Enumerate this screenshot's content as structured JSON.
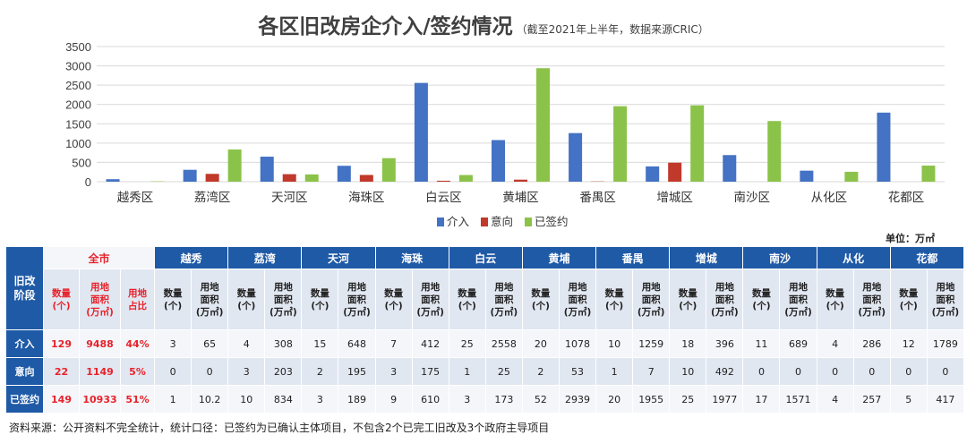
{
  "title": "各区旧改房企介入/签约情况",
  "subtitle": "（截至2021年上半年，数据来源CRIC）",
  "chart_data": {
    "type": "bar",
    "categories": [
      "越秀区",
      "荔湾区",
      "天河区",
      "海珠区",
      "白云区",
      "黄埔区",
      "番禺区",
      "增城区",
      "南沙区",
      "从化区",
      "花都区"
    ],
    "series": [
      {
        "name": "介入",
        "color": "#4472c4",
        "values": [
          65,
          308,
          648,
          412,
          2558,
          1078,
          1259,
          396,
          689,
          286,
          1789
        ]
      },
      {
        "name": "意向",
        "color": "#c0392b",
        "values": [
          0,
          203,
          195,
          175,
          25,
          53,
          7,
          492,
          0,
          0,
          0
        ]
      },
      {
        "name": "已签约",
        "color": "#8bc34a",
        "values": [
          10.2,
          834,
          189,
          610,
          173,
          2939,
          1955,
          1977,
          1571,
          257,
          417
        ]
      }
    ],
    "yticks": [
      "0",
      "500",
      "1000",
      "1500",
      "2000",
      "2500",
      "3000",
      "3500"
    ],
    "ylim": [
      0,
      3500
    ],
    "grid": true,
    "legend": "bottom"
  },
  "table": {
    "unit_label": "单位：万㎡",
    "stage_header": "旧改\n阶段",
    "city_header": "全市",
    "city_subheaders": [
      "数量\n(个)",
      "用地\n面积\n(万㎡)",
      "用地\n占比"
    ],
    "district_subheaders": [
      "数量\n(个)",
      "用地\n面积\n(万㎡)"
    ],
    "districts": [
      "越秀",
      "荔湾",
      "天河",
      "海珠",
      "白云",
      "黄埔",
      "番禺",
      "增城",
      "南沙",
      "从化",
      "花都"
    ],
    "rows": [
      {
        "label": "介入",
        "city": [
          "129",
          "9488",
          "44%"
        ],
        "cells": [
          "3",
          "65",
          "4",
          "308",
          "15",
          "648",
          "7",
          "412",
          "25",
          "2558",
          "20",
          "1078",
          "10",
          "1259",
          "18",
          "396",
          "11",
          "689",
          "4",
          "286",
          "12",
          "1789"
        ]
      },
      {
        "label": "意向",
        "city": [
          "22",
          "1149",
          "5%"
        ],
        "cells": [
          "0",
          "0",
          "3",
          "203",
          "2",
          "195",
          "3",
          "175",
          "1",
          "25",
          "2",
          "53",
          "1",
          "7",
          "10",
          "492",
          "0",
          "0",
          "0",
          "0",
          "0",
          "0"
        ]
      },
      {
        "label": "已签约",
        "city": [
          "149",
          "10933",
          "51%"
        ],
        "cells": [
          "1",
          "10.2",
          "10",
          "834",
          "3",
          "189",
          "9",
          "610",
          "3",
          "173",
          "52",
          "2939",
          "20",
          "1955",
          "25",
          "1977",
          "17",
          "1571",
          "4",
          "257",
          "5",
          "417"
        ]
      }
    ]
  },
  "source_note": "资料来源：公开资料不完全统计，统计口径：已签约为已确认主体项目，不包含2个已完工旧改及3个政府主导项目"
}
